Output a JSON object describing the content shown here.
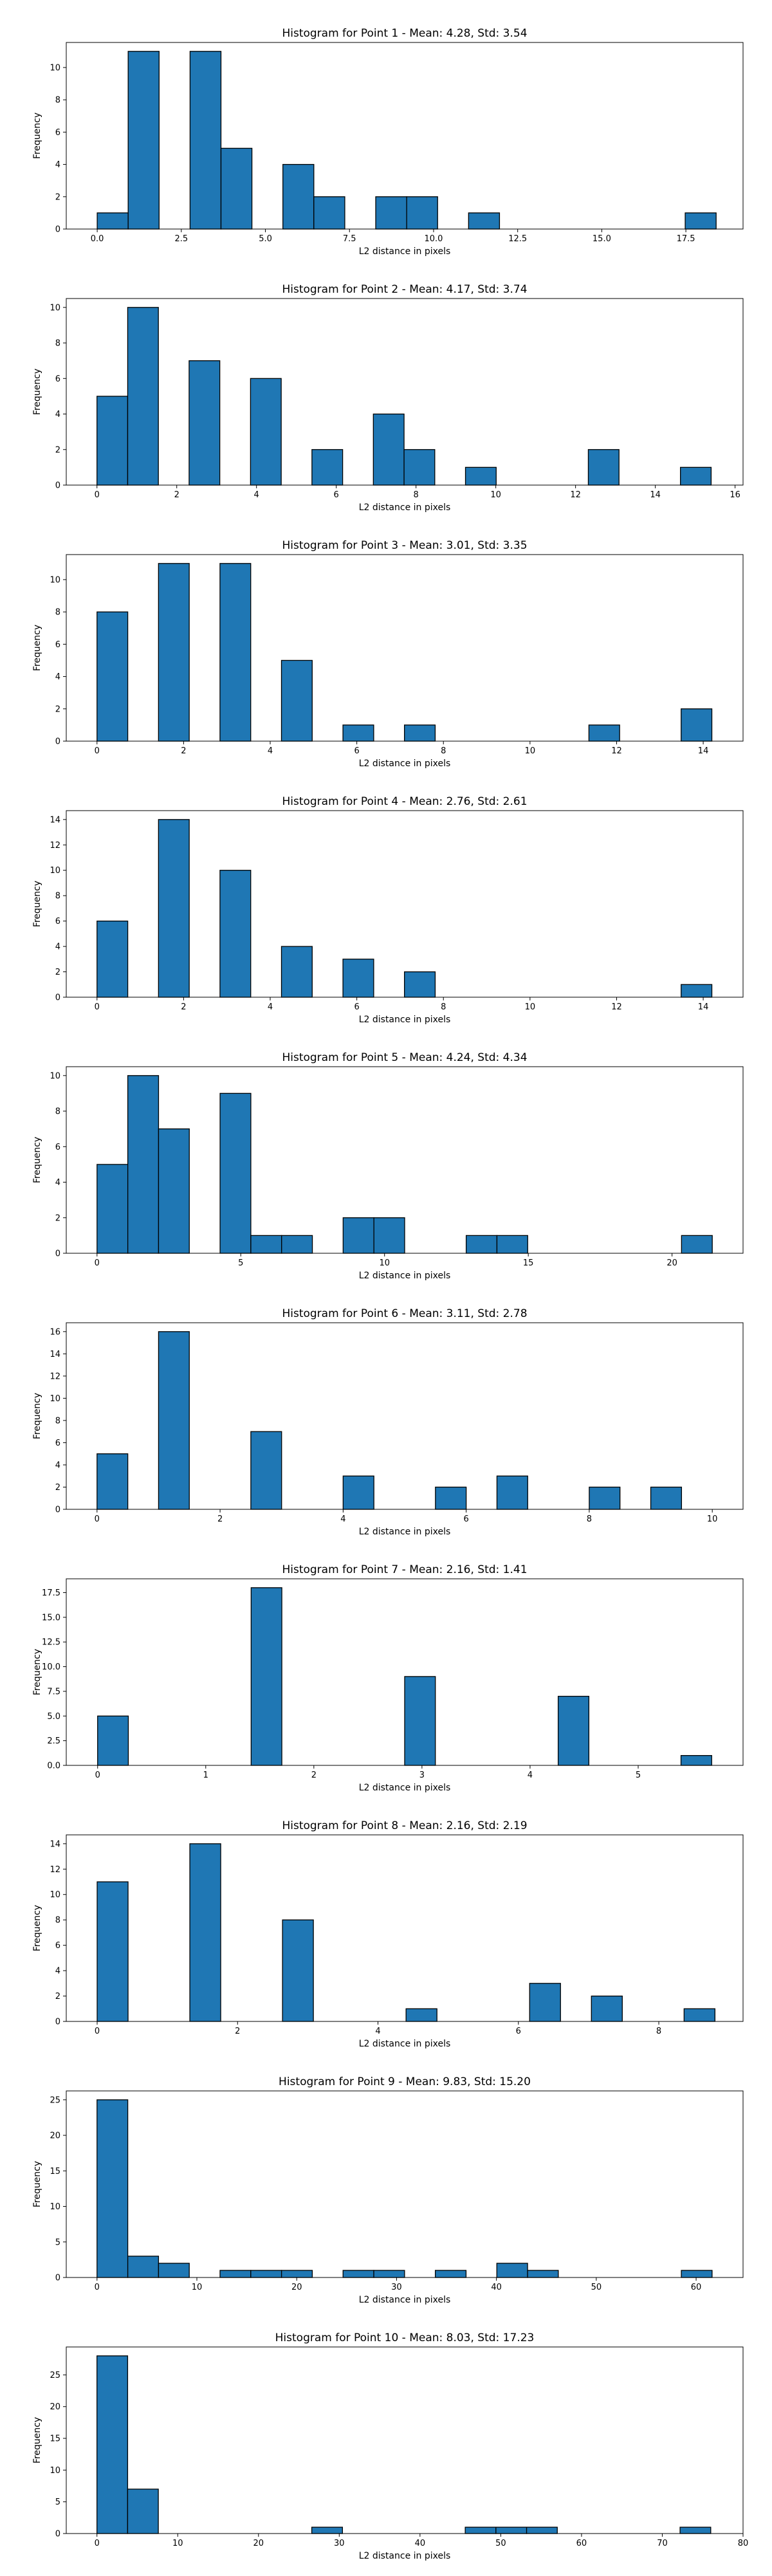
{
  "chart_data": [
    {
      "type": "bar",
      "title": "Histogram for Point 1 - Mean: 4.28, Std: 3.54",
      "xlabel": "L2 distance in pixels",
      "ylabel": "Frequency",
      "xlim": [
        -0.92,
        19.2
      ],
      "ylim": [
        0,
        11.55
      ],
      "xticks": [
        0.0,
        2.5,
        5.0,
        7.5,
        10.0,
        12.5,
        15.0,
        17.5
      ],
      "xtick_labels": [
        "0.0",
        "2.5",
        "5.0",
        "7.5",
        "10.0",
        "12.5",
        "15.0",
        "17.5"
      ],
      "yticks": [
        0,
        2,
        4,
        6,
        8,
        10
      ],
      "ytick_labels": [
        "0",
        "2",
        "4",
        "6",
        "8",
        "10"
      ],
      "bin_edges": [
        0,
        0.92,
        1.84,
        2.76,
        3.68,
        4.6,
        5.52,
        6.44,
        7.36,
        8.28,
        9.2,
        10.12,
        11.04,
        11.96,
        12.88,
        13.8,
        14.72,
        15.64,
        16.56,
        17.48,
        18.4
      ],
      "counts": [
        1,
        11,
        0,
        11,
        5,
        0,
        4,
        2,
        0,
        2,
        2,
        0,
        1,
        0,
        0,
        0,
        0,
        0,
        0,
        1
      ]
    },
    {
      "type": "bar",
      "title": "Histogram for Point 2 - Mean: 4.17, Std: 3.74",
      "xlabel": "L2 distance in pixels",
      "ylabel": "Frequency",
      "xlim": [
        -0.77,
        16.2
      ],
      "ylim": [
        0,
        10.5
      ],
      "xticks": [
        0,
        2,
        4,
        6,
        8,
        10,
        12,
        14,
        16
      ],
      "xtick_labels": [
        "0",
        "2",
        "4",
        "6",
        "8",
        "10",
        "12",
        "14",
        "16"
      ],
      "yticks": [
        0,
        2,
        4,
        6,
        8,
        10
      ],
      "ytick_labels": [
        "0",
        "2",
        "4",
        "6",
        "8",
        "10"
      ],
      "bin_edges": [
        0,
        0.77,
        1.54,
        2.31,
        3.08,
        3.85,
        4.62,
        5.39,
        6.16,
        6.93,
        7.7,
        8.47,
        9.24,
        10.01,
        10.78,
        11.55,
        12.32,
        13.09,
        13.86,
        14.63,
        15.4
      ],
      "counts": [
        5,
        10,
        0,
        7,
        0,
        6,
        0,
        2,
        0,
        4,
        2,
        0,
        1,
        0,
        0,
        0,
        2,
        0,
        0,
        1
      ]
    },
    {
      "type": "bar",
      "title": "Histogram for Point 3 - Mean: 3.01, Std: 3.35",
      "xlabel": "L2 distance in pixels",
      "ylabel": "Frequency",
      "xlim": [
        -0.71,
        14.92
      ],
      "ylim": [
        0,
        11.55
      ],
      "xticks": [
        0,
        2,
        4,
        6,
        8,
        10,
        12,
        14
      ],
      "xtick_labels": [
        "0",
        "2",
        "4",
        "6",
        "8",
        "10",
        "12",
        "14"
      ],
      "yticks": [
        0,
        2,
        4,
        6,
        8,
        10
      ],
      "ytick_labels": [
        "0",
        "2",
        "4",
        "6",
        "8",
        "10"
      ],
      "bin_edges": [
        0,
        0.71,
        1.42,
        2.13,
        2.84,
        3.55,
        4.26,
        4.97,
        5.68,
        6.39,
        7.1,
        7.81,
        8.52,
        9.23,
        9.94,
        10.65,
        11.36,
        12.07,
        12.78,
        13.49,
        14.2
      ],
      "counts": [
        8,
        0,
        11,
        0,
        11,
        0,
        5,
        0,
        1,
        0,
        1,
        0,
        0,
        0,
        0,
        0,
        1,
        0,
        0,
        2
      ]
    },
    {
      "type": "bar",
      "title": "Histogram for Point 4 - Mean: 2.76, Std: 2.61",
      "xlabel": "L2 distance in pixels",
      "ylabel": "Frequency",
      "xlim": [
        -0.71,
        14.92
      ],
      "ylim": [
        0,
        14.7
      ],
      "xticks": [
        0,
        2,
        4,
        6,
        8,
        10,
        12,
        14
      ],
      "xtick_labels": [
        "0",
        "2",
        "4",
        "6",
        "8",
        "10",
        "12",
        "14"
      ],
      "yticks": [
        0,
        2,
        4,
        6,
        8,
        10,
        12,
        14
      ],
      "ytick_labels": [
        "0",
        "2",
        "4",
        "6",
        "8",
        "10",
        "12",
        "14"
      ],
      "bin_edges": [
        0,
        0.71,
        1.42,
        2.13,
        2.84,
        3.55,
        4.26,
        4.97,
        5.68,
        6.39,
        7.1,
        7.81,
        8.52,
        9.23,
        9.94,
        10.65,
        11.36,
        12.07,
        12.78,
        13.49,
        14.2
      ],
      "counts": [
        6,
        0,
        14,
        0,
        10,
        0,
        4,
        0,
        3,
        0,
        2,
        0,
        0,
        0,
        0,
        0,
        0,
        0,
        0,
        1
      ]
    },
    {
      "type": "bar",
      "title": "Histogram for Point 5 - Mean: 4.24, Std: 4.34",
      "xlabel": "L2 distance in pixels",
      "ylabel": "Frequency",
      "xlim": [
        -1.07,
        22.47
      ],
      "ylim": [
        0,
        10.5
      ],
      "xticks": [
        0,
        5,
        10,
        15,
        20
      ],
      "xtick_labels": [
        "0",
        "5",
        "10",
        "15",
        "20"
      ],
      "yticks": [
        0,
        2,
        4,
        6,
        8,
        10
      ],
      "ytick_labels": [
        "0",
        "2",
        "4",
        "6",
        "8",
        "10"
      ],
      "bin_edges": [
        0,
        1.07,
        2.14,
        3.21,
        4.28,
        5.35,
        6.42,
        7.49,
        8.56,
        9.63,
        10.7,
        11.77,
        12.84,
        13.91,
        14.98,
        16.05,
        17.12,
        18.19,
        19.26,
        20.33,
        21.4
      ],
      "counts": [
        5,
        10,
        7,
        0,
        9,
        1,
        1,
        0,
        2,
        2,
        0,
        0,
        1,
        1,
        0,
        0,
        0,
        0,
        0,
        1
      ]
    },
    {
      "type": "bar",
      "title": "Histogram for Point 6 - Mean: 3.11, Std: 2.78",
      "xlabel": "L2 distance in pixels",
      "ylabel": "Frequency",
      "xlim": [
        -0.5,
        10.5
      ],
      "ylim": [
        0,
        16.8
      ],
      "xticks": [
        0,
        2,
        4,
        6,
        8,
        10
      ],
      "xtick_labels": [
        "0",
        "2",
        "4",
        "6",
        "8",
        "10"
      ],
      "yticks": [
        0,
        2,
        4,
        6,
        8,
        10,
        12,
        14,
        16
      ],
      "ytick_labels": [
        "0",
        "2",
        "4",
        "6",
        "8",
        "10",
        "12",
        "14",
        "16"
      ],
      "bin_edges": [
        0,
        0.5,
        1,
        1.5,
        2,
        2.5,
        3,
        3.5,
        4,
        4.5,
        5,
        5.5,
        6,
        6.5,
        7,
        7.5,
        8,
        8.5,
        9,
        9.5,
        10
      ],
      "counts": [
        5,
        0,
        16,
        0,
        0,
        7,
        0,
        0,
        3,
        0,
        0,
        2,
        0,
        3,
        0,
        0,
        2,
        0,
        2,
        0
      ]
    },
    {
      "type": "bar",
      "title": "Histogram for Point 7 - Mean: 2.16, Std: 1.41",
      "xlabel": "L2 distance in pixels",
      "ylabel": "Frequency",
      "xlim": [
        -0.29,
        5.97
      ],
      "ylim": [
        0,
        18.9
      ],
      "xticks": [
        0,
        1,
        2,
        3,
        4,
        5
      ],
      "xtick_labels": [
        "0",
        "1",
        "2",
        "3",
        "4",
        "5"
      ],
      "yticks": [
        0,
        2.5,
        5,
        7.5,
        10,
        12.5,
        15,
        17.5
      ],
      "ytick_labels": [
        "0.0",
        "2.5",
        "5.0",
        "7.5",
        "10.0",
        "12.5",
        "15.0",
        "17.5"
      ],
      "bin_edges": [
        0,
        0.284,
        0.568,
        0.852,
        1.136,
        1.42,
        1.704,
        1.988,
        2.272,
        2.556,
        2.84,
        3.124,
        3.408,
        3.692,
        3.976,
        4.26,
        4.544,
        4.828,
        5.112,
        5.396,
        5.68
      ],
      "counts": [
        5,
        0,
        0,
        0,
        0,
        18,
        0,
        0,
        0,
        0,
        9,
        0,
        0,
        0,
        0,
        7,
        0,
        0,
        0,
        1
      ]
    },
    {
      "type": "bar",
      "title": "Histogram for Point 8 - Mean: 2.16, Std: 2.19",
      "xlabel": "L2 distance in pixels",
      "ylabel": "Frequency",
      "xlim": [
        -0.44,
        9.2
      ],
      "ylim": [
        0,
        14.7
      ],
      "xticks": [
        0,
        2,
        4,
        6,
        8
      ],
      "xtick_labels": [
        "0",
        "2",
        "4",
        "6",
        "8"
      ],
      "yticks": [
        0,
        2,
        4,
        6,
        8,
        10,
        12,
        14
      ],
      "ytick_labels": [
        "0",
        "2",
        "4",
        "6",
        "8",
        "10",
        "12",
        "14"
      ],
      "bin_edges": [
        0,
        0.44,
        0.88,
        1.32,
        1.76,
        2.2,
        2.64,
        3.08,
        3.52,
        3.96,
        4.4,
        4.84,
        5.28,
        5.72,
        6.16,
        6.6,
        7.04,
        7.48,
        7.92,
        8.36,
        8.8
      ],
      "counts": [
        11,
        0,
        0,
        14,
        0,
        0,
        8,
        0,
        0,
        0,
        1,
        0,
        0,
        0,
        3,
        0,
        2,
        0,
        0,
        1
      ]
    },
    {
      "type": "bar",
      "title": "Histogram for Point 9 - Mean: 9.83, Std: 15.20",
      "xlabel": "L2 distance in pixels",
      "ylabel": "Frequency",
      "xlim": [
        -3.08,
        64.7
      ],
      "ylim": [
        0,
        26.25
      ],
      "xticks": [
        0,
        10,
        20,
        30,
        40,
        50,
        60
      ],
      "xtick_labels": [
        "0",
        "10",
        "20",
        "30",
        "40",
        "50",
        "60"
      ],
      "yticks": [
        0,
        5,
        10,
        15,
        20,
        25
      ],
      "ytick_labels": [
        "0",
        "5",
        "10",
        "15",
        "20",
        "25"
      ],
      "bin_edges": [
        0,
        3.08,
        6.16,
        9.24,
        12.32,
        15.4,
        18.48,
        21.56,
        24.64,
        27.72,
        30.8,
        33.88,
        36.96,
        40.04,
        43.12,
        46.2,
        49.28,
        52.36,
        55.44,
        58.52,
        61.6
      ],
      "counts": [
        25,
        3,
        2,
        0,
        1,
        1,
        1,
        0,
        1,
        1,
        0,
        1,
        0,
        2,
        1,
        0,
        0,
        0,
        0,
        1
      ]
    },
    {
      "type": "bar",
      "title": "Histogram for Point 10 - Mean: 8.03, Std: 17.23",
      "xlabel": "L2 distance in pixels",
      "ylabel": "Frequency",
      "xlim": [
        -3.8,
        80.0
      ],
      "ylim": [
        0,
        29.4
      ],
      "xticks": [
        0,
        10,
        20,
        30,
        40,
        50,
        60,
        70,
        80
      ],
      "xtick_labels": [
        "0",
        "10",
        "20",
        "30",
        "40",
        "50",
        "60",
        "70",
        "80"
      ],
      "yticks": [
        0,
        5,
        10,
        15,
        20,
        25
      ],
      "ytick_labels": [
        "0",
        "5",
        "10",
        "15",
        "20",
        "25"
      ],
      "bin_edges": [
        0,
        3.8,
        7.6,
        11.4,
        15.2,
        19,
        22.8,
        26.6,
        30.4,
        34.2,
        38,
        41.8,
        45.6,
        49.4,
        53.2,
        57,
        60.8,
        64.6,
        68.4,
        72.2,
        76
      ],
      "counts": [
        28,
        7,
        0,
        0,
        0,
        0,
        0,
        1,
        0,
        0,
        0,
        0,
        1,
        1,
        1,
        0,
        0,
        0,
        0,
        1
      ]
    }
  ]
}
